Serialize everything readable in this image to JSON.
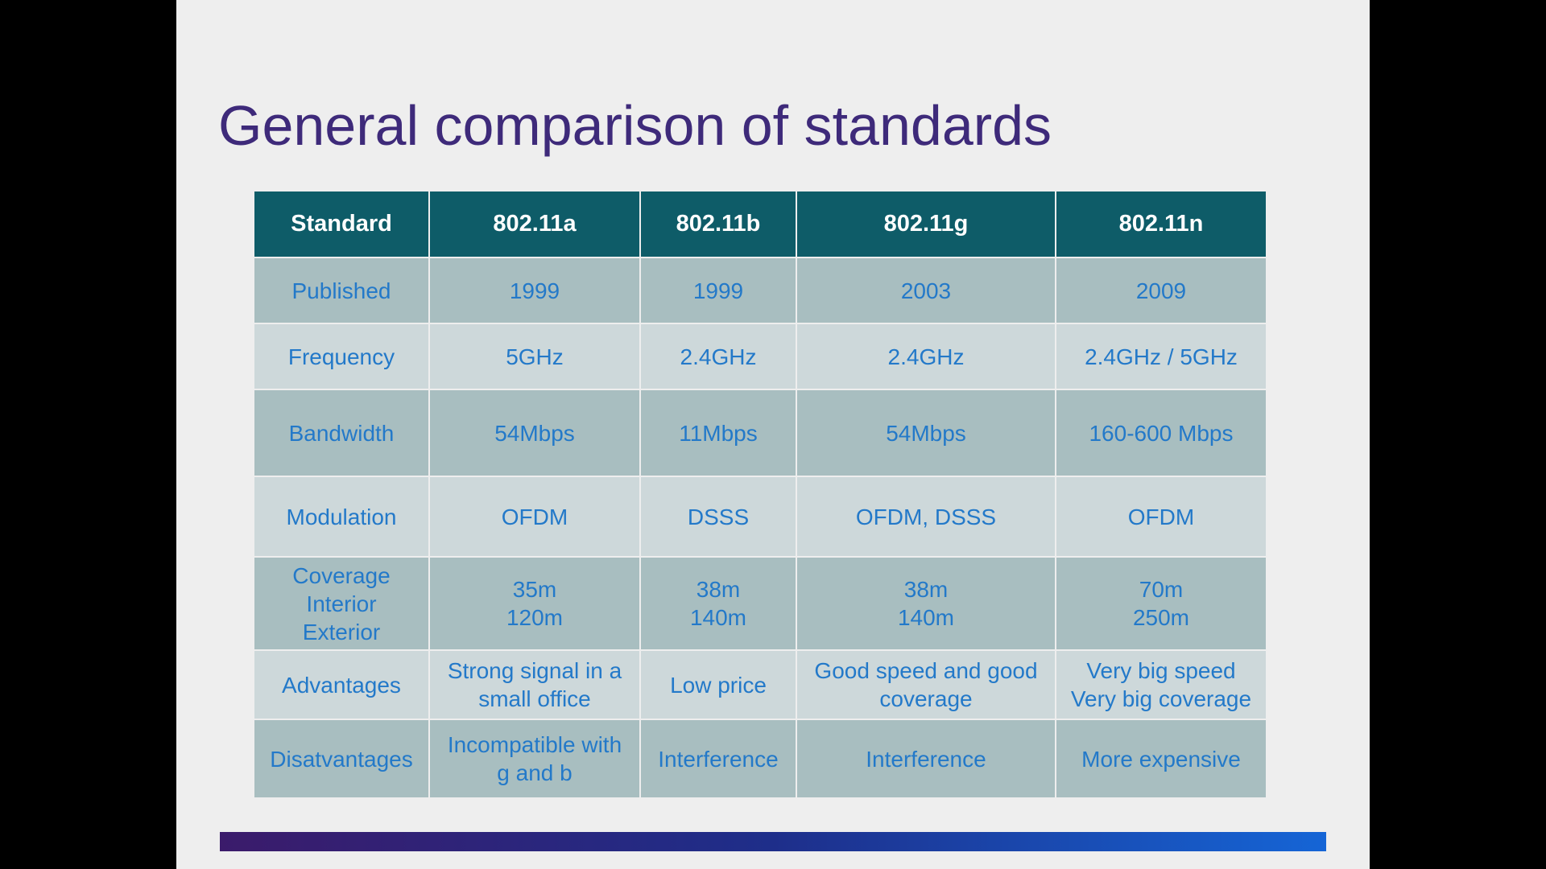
{
  "slide": {
    "title": "General comparison of standards"
  },
  "table": {
    "headers": [
      "Standard",
      "802.11a",
      "802.11b",
      "802.11g",
      "802.11n"
    ],
    "rows": [
      {
        "label": [
          "Published"
        ],
        "cells": [
          [
            "1999"
          ],
          [
            "1999"
          ],
          [
            "2003"
          ],
          [
            "2009"
          ]
        ]
      },
      {
        "label": [
          "Frequency"
        ],
        "cells": [
          [
            "5GHz"
          ],
          [
            "2.4GHz"
          ],
          [
            "2.4GHz"
          ],
          [
            "2.4GHz / 5GHz"
          ]
        ]
      },
      {
        "label": [
          "Bandwidth"
        ],
        "cells": [
          [
            "54Mbps"
          ],
          [
            "11Mbps"
          ],
          [
            "54Mbps"
          ],
          [
            "160-600 Mbps"
          ]
        ]
      },
      {
        "label": [
          "Modulation"
        ],
        "cells": [
          [
            "OFDM"
          ],
          [
            "DSSS"
          ],
          [
            "OFDM, DSSS"
          ],
          [
            "OFDM"
          ]
        ]
      },
      {
        "label": [
          "Coverage",
          "Interior",
          "Exterior"
        ],
        "cells": [
          [
            "35m",
            "120m"
          ],
          [
            "38m",
            "140m"
          ],
          [
            "38m",
            "140m"
          ],
          [
            "70m",
            "250m"
          ]
        ]
      },
      {
        "label": [
          "Advantages"
        ],
        "cells": [
          [
            "Strong signal in a",
            "small office"
          ],
          [
            "Low price"
          ],
          [
            "Good speed and good",
            "coverage"
          ],
          [
            "Very big speed",
            "Very big coverage"
          ]
        ]
      },
      {
        "label": [
          "Disatvantages"
        ],
        "cells": [
          [
            "Incompatible with",
            "g and b"
          ],
          [
            "Interference"
          ],
          [
            "Interference"
          ],
          [
            "More expensive"
          ]
        ]
      }
    ]
  },
  "colors": {
    "title": "#3e2a7a",
    "header_bg": "#0e5c68",
    "row_dark": "#a8bec0",
    "row_light": "#cdd8da",
    "cell_text": "#2379c9"
  }
}
